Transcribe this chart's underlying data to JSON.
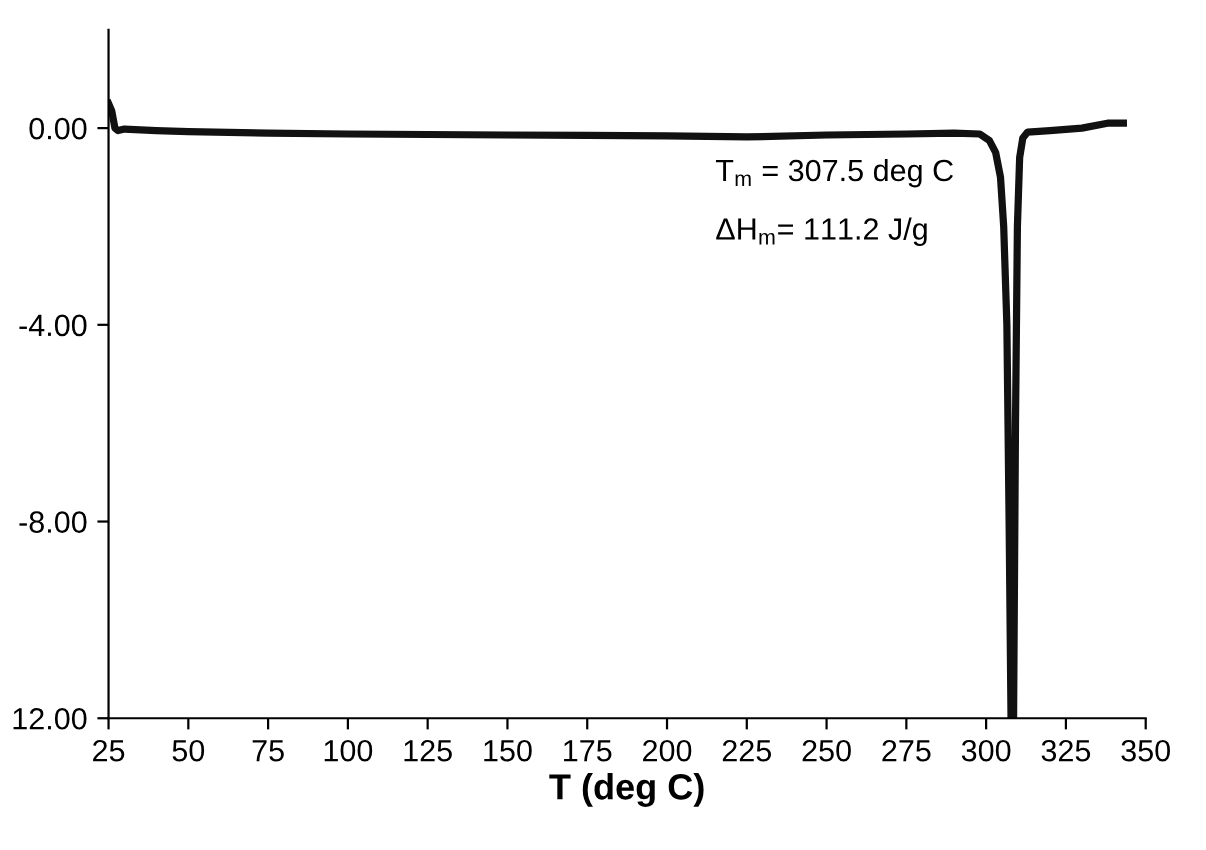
{
  "chart_data": {
    "type": "line",
    "xlabel": "T (deg C)",
    "annotations": [
      "T$_{m}$ = 307.5 deg C",
      "ΔH$_{m}$= 111.2 J/g"
    ],
    "series": [
      {
        "color": "#111111",
        "x": [
          25,
          26,
          27,
          28,
          30,
          40,
          50,
          75,
          100,
          125,
          150,
          175,
          200,
          225,
          250,
          275,
          290,
          298,
          301,
          303,
          304.5,
          305.5,
          306.5,
          307.2,
          307.8,
          308.6,
          309.2,
          309.8,
          310.5,
          311.5,
          313,
          320,
          330,
          338,
          343
        ],
        "values": [
          0.5,
          0.35,
          0.0,
          -0.05,
          -0.02,
          -0.05,
          -0.07,
          -0.1,
          -0.12,
          -0.13,
          -0.14,
          -0.15,
          -0.16,
          -0.18,
          -0.14,
          -0.12,
          -0.1,
          -0.12,
          -0.25,
          -0.5,
          -1.0,
          -2.0,
          -4.0,
          -8.0,
          -12.0,
          -12.0,
          -6.0,
          -2.0,
          -0.6,
          -0.2,
          -0.08,
          -0.05,
          0.0,
          0.1,
          0.1
        ]
      }
    ],
    "xlim": [
      25,
      350
    ],
    "ylim": [
      -12,
      2
    ],
    "xticks": [
      25,
      50,
      75,
      100,
      125,
      150,
      175,
      200,
      225,
      250,
      275,
      300,
      325,
      350
    ],
    "yticks": [
      {
        "value": 0,
        "label": "0.00"
      },
      {
        "value": -4,
        "label": "-4.00"
      },
      {
        "value": -8,
        "label": "-8.00"
      },
      {
        "value": -12,
        "label": "12.00"
      }
    ],
    "grid": false,
    "legend": false,
    "marker": "none",
    "line_style": "solid"
  }
}
